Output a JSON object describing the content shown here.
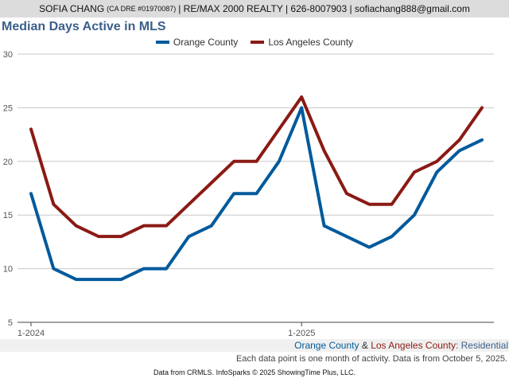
{
  "header": {
    "agent_name": "SOFIA CHANG",
    "license": "(CA DRE #01970087)",
    "rest": "| RE/MAX 2000 REALTY | 626-8007903 | sofiachang888@gmail.com"
  },
  "chart_data": {
    "type": "line",
    "title": "Median Days Active in MLS",
    "x": [
      "1-2024",
      "2-2024",
      "3-2024",
      "4-2024",
      "5-2024",
      "6-2024",
      "7-2024",
      "8-2024",
      "9-2024",
      "10-2024",
      "11-2024",
      "12-2024",
      "1-2025",
      "2-2025",
      "3-2025",
      "4-2025",
      "5-2025",
      "6-2025",
      "7-2025",
      "8-2025",
      "9-2025"
    ],
    "x_tick_labels": [
      "1-2024",
      "1-2025"
    ],
    "series": [
      {
        "name": "Orange County",
        "color": "#005a9c",
        "values": [
          17,
          10,
          9,
          9,
          9,
          10,
          10,
          13,
          14,
          17,
          17,
          20,
          25,
          14,
          13,
          12,
          13,
          15,
          19,
          21,
          22
        ]
      },
      {
        "name": "Los Angeles County",
        "color": "#8b1a14",
        "values": [
          23,
          16,
          14,
          13,
          13,
          14,
          14,
          16,
          18,
          20,
          20,
          23,
          26,
          21,
          17,
          16,
          16,
          19,
          20,
          22,
          25
        ]
      }
    ],
    "yticks": [
      5,
      10,
      15,
      20,
      25,
      30
    ],
    "ylim": [
      5,
      30
    ],
    "xlabel": "",
    "ylabel": "",
    "grid": true
  },
  "subtitle": {
    "county1": "Orange County",
    "amp": "&",
    "county2": "Los Angeles County",
    "suffix": ": Residential"
  },
  "note": "Each data point is one month of activity. Data is from October 5, 2025.",
  "credit": "Data from CRMLS. InfoSparks © 2025 ShowingTime Plus, LLC."
}
